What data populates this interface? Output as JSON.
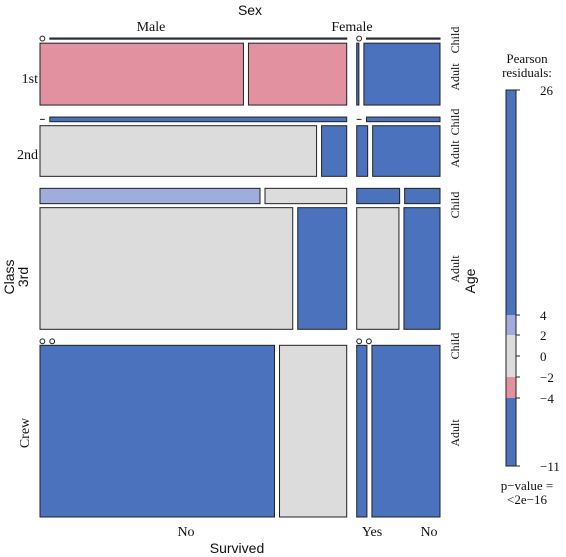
{
  "chart_data": {
    "type": "mosaic",
    "title": "Sex",
    "variables": {
      "sex": "Sex",
      "class": "Class",
      "age": "Age",
      "survived": "Survived"
    },
    "levels": {
      "sex": [
        "Male",
        "Female"
      ],
      "class": [
        "1st",
        "2nd",
        "3rd",
        "Crew"
      ],
      "age": [
        "Child",
        "Adult"
      ],
      "survived": [
        "No",
        "Yes"
      ]
    },
    "bottom_labels": [
      "No",
      "Yes",
      "No"
    ],
    "cells": [
      {
        "class": "1st",
        "sex": "Male",
        "age": "Child",
        "survived": "No",
        "count": 0,
        "shade": "zero"
      },
      {
        "class": "1st",
        "sex": "Male",
        "age": "Child",
        "survived": "Yes",
        "count": 5,
        "shade": "blue"
      },
      {
        "class": "1st",
        "sex": "Male",
        "age": "Adult",
        "survived": "No",
        "count": 118,
        "shade": "pink"
      },
      {
        "class": "1st",
        "sex": "Male",
        "age": "Adult",
        "survived": "Yes",
        "count": 57,
        "shade": "pink"
      },
      {
        "class": "1st",
        "sex": "Female",
        "age": "Child",
        "survived": "No",
        "count": 0,
        "shade": "zero"
      },
      {
        "class": "1st",
        "sex": "Female",
        "age": "Child",
        "survived": "Yes",
        "count": 1,
        "shade": "blue"
      },
      {
        "class": "1st",
        "sex": "Female",
        "age": "Adult",
        "survived": "No",
        "count": 4,
        "shade": "blue"
      },
      {
        "class": "1st",
        "sex": "Female",
        "age": "Adult",
        "survived": "Yes",
        "count": 140,
        "shade": "blue"
      },
      {
        "class": "2nd",
        "sex": "Male",
        "age": "Child",
        "survived": "No",
        "count": 0,
        "shade": "zero"
      },
      {
        "class": "2nd",
        "sex": "Male",
        "age": "Child",
        "survived": "Yes",
        "count": 11,
        "shade": "blue"
      },
      {
        "class": "2nd",
        "sex": "Male",
        "age": "Adult",
        "survived": "No",
        "count": 154,
        "shade": "gray"
      },
      {
        "class": "2nd",
        "sex": "Male",
        "age": "Adult",
        "survived": "Yes",
        "count": 14,
        "shade": "blue"
      },
      {
        "class": "2nd",
        "sex": "Female",
        "age": "Child",
        "survived": "No",
        "count": 0,
        "shade": "zero"
      },
      {
        "class": "2nd",
        "sex": "Female",
        "age": "Child",
        "survived": "Yes",
        "count": 13,
        "shade": "blue"
      },
      {
        "class": "2nd",
        "sex": "Female",
        "age": "Adult",
        "survived": "No",
        "count": 13,
        "shade": "blue"
      },
      {
        "class": "2nd",
        "sex": "Female",
        "age": "Adult",
        "survived": "Yes",
        "count": 80,
        "shade": "blue"
      },
      {
        "class": "3rd",
        "sex": "Male",
        "age": "Child",
        "survived": "No",
        "count": 35,
        "shade": "lightblue"
      },
      {
        "class": "3rd",
        "sex": "Male",
        "age": "Child",
        "survived": "Yes",
        "count": 13,
        "shade": "gray"
      },
      {
        "class": "3rd",
        "sex": "Male",
        "age": "Adult",
        "survived": "No",
        "count": 387,
        "shade": "gray"
      },
      {
        "class": "3rd",
        "sex": "Male",
        "age": "Adult",
        "survived": "Yes",
        "count": 75,
        "shade": "blue"
      },
      {
        "class": "3rd",
        "sex": "Female",
        "age": "Child",
        "survived": "No",
        "count": 17,
        "shade": "blue"
      },
      {
        "class": "3rd",
        "sex": "Female",
        "age": "Child",
        "survived": "Yes",
        "count": 14,
        "shade": "blue"
      },
      {
        "class": "3rd",
        "sex": "Female",
        "age": "Adult",
        "survived": "No",
        "count": 89,
        "shade": "gray"
      },
      {
        "class": "3rd",
        "sex": "Female",
        "age": "Adult",
        "survived": "Yes",
        "count": 76,
        "shade": "blue"
      },
      {
        "class": "Crew",
        "sex": "Male",
        "age": "Child",
        "survived": "No",
        "count": 0,
        "shade": "zero"
      },
      {
        "class": "Crew",
        "sex": "Male",
        "age": "Child",
        "survived": "Yes",
        "count": 0,
        "shade": "zero"
      },
      {
        "class": "Crew",
        "sex": "Male",
        "age": "Adult",
        "survived": "No",
        "count": 670,
        "shade": "blue"
      },
      {
        "class": "Crew",
        "sex": "Male",
        "age": "Adult",
        "survived": "Yes",
        "count": 192,
        "shade": "gray"
      },
      {
        "class": "Crew",
        "sex": "Female",
        "age": "Child",
        "survived": "No",
        "count": 0,
        "shade": "zero"
      },
      {
        "class": "Crew",
        "sex": "Female",
        "age": "Child",
        "survived": "Yes",
        "count": 0,
        "shade": "zero"
      },
      {
        "class": "Crew",
        "sex": "Female",
        "age": "Adult",
        "survived": "No",
        "count": 3,
        "shade": "blue"
      },
      {
        "class": "Crew",
        "sex": "Female",
        "age": "Adult",
        "survived": "Yes",
        "count": 20,
        "shade": "blue"
      }
    ],
    "legend": {
      "title_lines": [
        "Pearson",
        "residuals:"
      ],
      "range": [
        -11,
        26
      ],
      "ticks": [
        26,
        4,
        2,
        0,
        -2,
        -4,
        -11
      ],
      "tick_labels": [
        "26",
        "4",
        "2",
        "0",
        "−2",
        "−4",
        "−11"
      ],
      "bands": [
        {
          "from": 4,
          "to": 26,
          "shade": "blue"
        },
        {
          "from": 2,
          "to": 4,
          "shade": "lightblue"
        },
        {
          "from": -2,
          "to": 2,
          "shade": "gray"
        },
        {
          "from": -4,
          "to": -2,
          "shade": "pink"
        },
        {
          "from": -11,
          "to": -4,
          "shade": "blue"
        }
      ],
      "pvalue_lines": [
        "p−value =",
        "<2e−16"
      ]
    },
    "colors": {
      "blue": "#4a72bd",
      "lightblue": "#a0acdb",
      "gray": "#dcdcdc",
      "pink": "#e1919f",
      "border": "#222222"
    }
  }
}
